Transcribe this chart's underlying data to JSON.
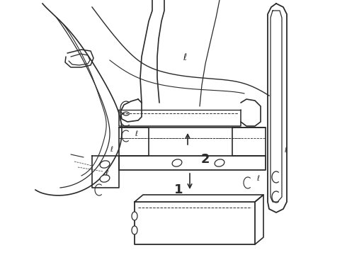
{
  "background_color": "#ffffff",
  "line_color": "#2a2a2a",
  "figsize": [
    4.9,
    3.6
  ],
  "dpi": 100,
  "label_1": "1",
  "label_2": "2",
  "xlim": [
    0,
    490
  ],
  "ylim": [
    0,
    360
  ]
}
